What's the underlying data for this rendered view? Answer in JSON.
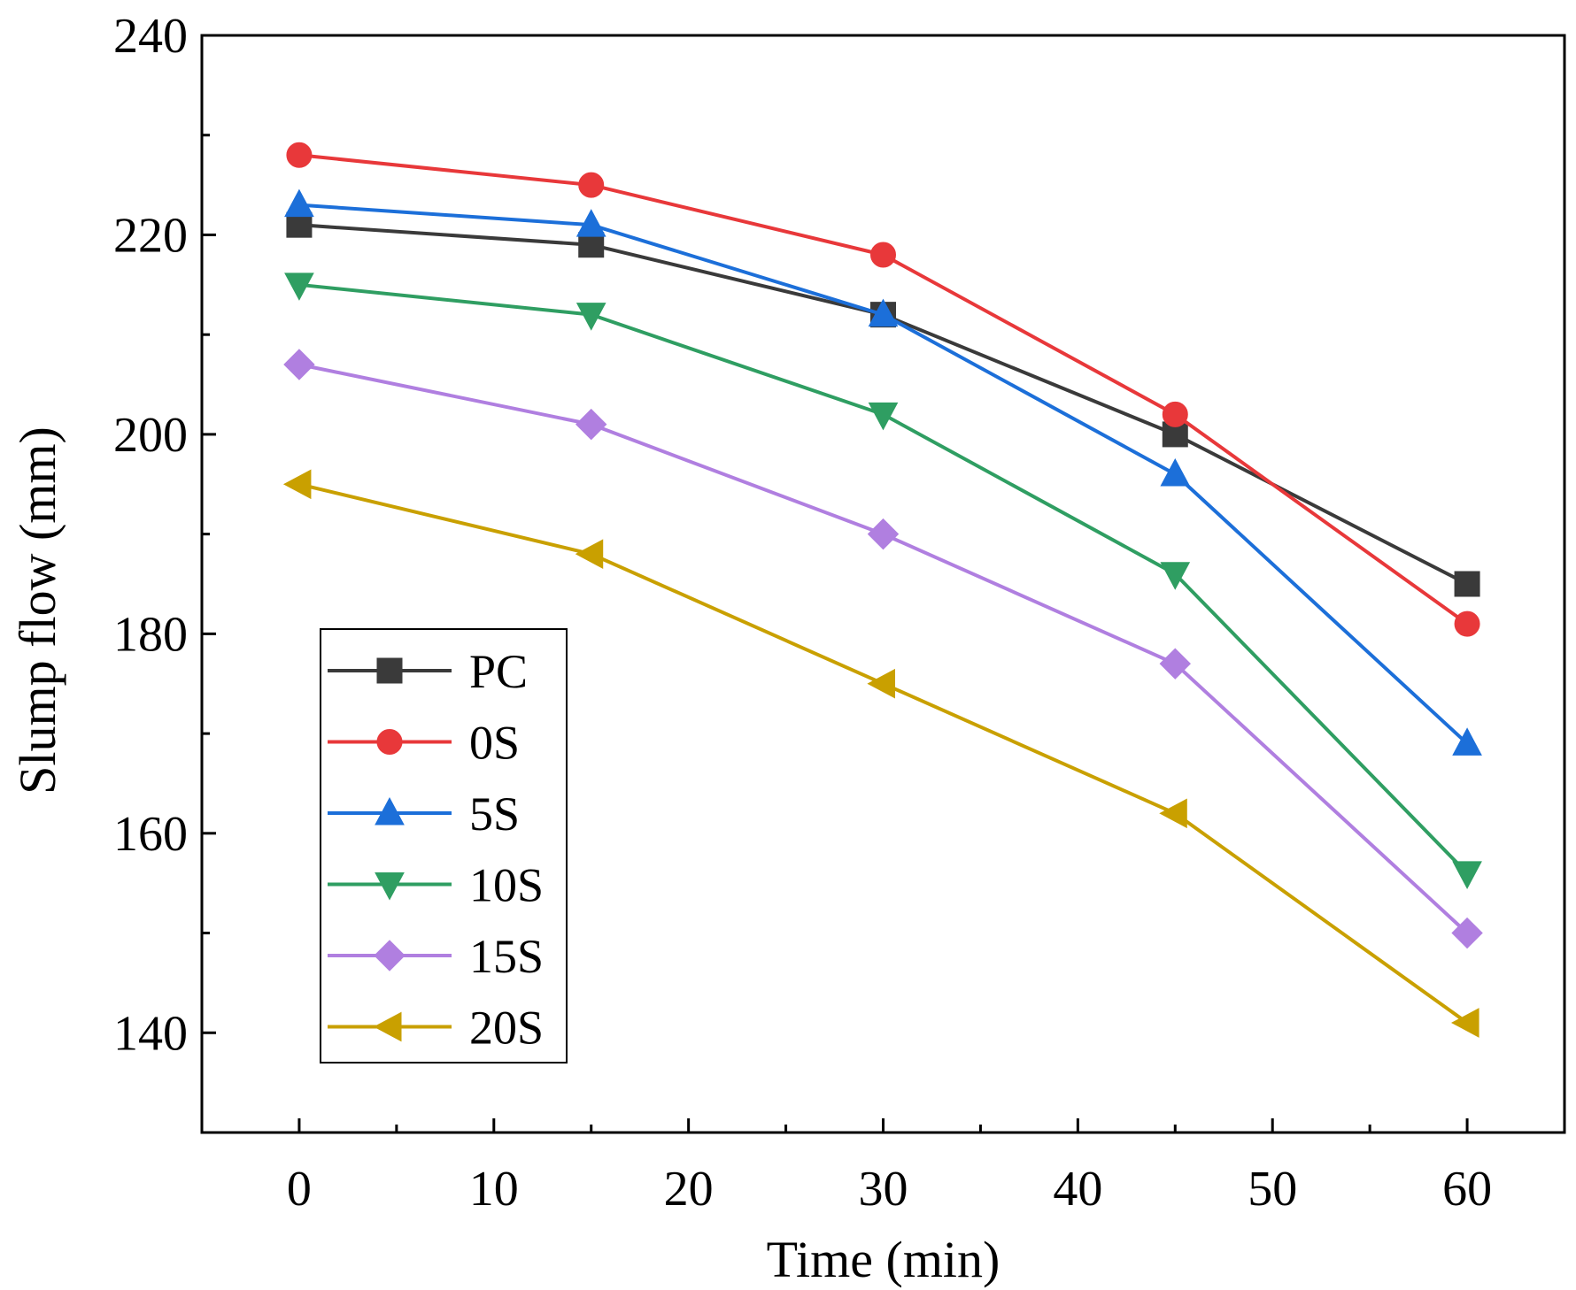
{
  "chart_data": {
    "type": "line",
    "title": "",
    "xlabel": "Time (min)",
    "ylabel": "Slump flow (mm)",
    "x": [
      0,
      15,
      30,
      45,
      60
    ],
    "xlim": [
      -5,
      65
    ],
    "ylim": [
      130,
      240
    ],
    "xticks": [
      0,
      10,
      20,
      30,
      40,
      50,
      60
    ],
    "xticks_minor": [
      5,
      15,
      25,
      35,
      45,
      55
    ],
    "yticks": [
      140,
      160,
      180,
      200,
      220,
      240
    ],
    "yticks_minor": [
      150,
      170,
      190,
      210,
      230
    ],
    "xtick_labels": [
      "0",
      "10",
      "20",
      "30",
      "40",
      "50",
      "60"
    ],
    "ytick_labels": [
      "140",
      "160",
      "180",
      "200",
      "220",
      "240"
    ],
    "grid": false,
    "legend_position": "bottom-left",
    "series": [
      {
        "name": "PC",
        "color": "#3a3a3a",
        "marker": "square",
        "values": [
          221,
          219,
          212,
          200,
          185
        ]
      },
      {
        "name": "0S",
        "color": "#e8383a",
        "marker": "circle",
        "values": [
          228,
          225,
          218,
          202,
          181
        ]
      },
      {
        "name": "5S",
        "color": "#1c6fd9",
        "marker": "triangle-up",
        "values": [
          223,
          221,
          212,
          196,
          169
        ]
      },
      {
        "name": "10S",
        "color": "#2f9e62",
        "marker": "triangle-down",
        "values": [
          215,
          212,
          202,
          186,
          156
        ]
      },
      {
        "name": "15S",
        "color": "#b07fe0",
        "marker": "diamond",
        "values": [
          207,
          201,
          190,
          177,
          150
        ]
      },
      {
        "name": "20S",
        "color": "#c9a000",
        "marker": "triangle-left",
        "values": [
          195,
          188,
          175,
          162,
          141
        ]
      }
    ]
  }
}
